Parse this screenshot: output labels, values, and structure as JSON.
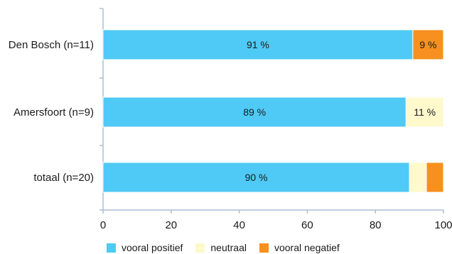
{
  "chart_data": {
    "type": "bar",
    "orientation": "horizontal",
    "stacked": true,
    "categories": [
      "Den Bosch (n=11)",
      "Amersfoort (n=9)",
      "totaal (n=20)"
    ],
    "series": [
      {
        "name": "vooral positief",
        "color": "#4fc9f5",
        "values": [
          91,
          89,
          90
        ],
        "labels": [
          "91 %",
          "89 %",
          "90 %"
        ]
      },
      {
        "name": "neutraal",
        "color": "#fff9cc",
        "values": [
          0,
          11,
          5
        ],
        "labels": [
          "",
          "11 %",
          ""
        ]
      },
      {
        "name": "vooral negatief",
        "color": "#f7901e",
        "values": [
          9,
          0,
          5
        ],
        "labels": [
          "9 %",
          "",
          ""
        ]
      }
    ],
    "xlim": [
      0,
      100
    ],
    "xticks": [
      "0",
      "20",
      "40",
      "60",
      "80",
      "100"
    ],
    "xlabel": "",
    "ylabel": "",
    "legend_position": "bottom",
    "grid": false
  }
}
